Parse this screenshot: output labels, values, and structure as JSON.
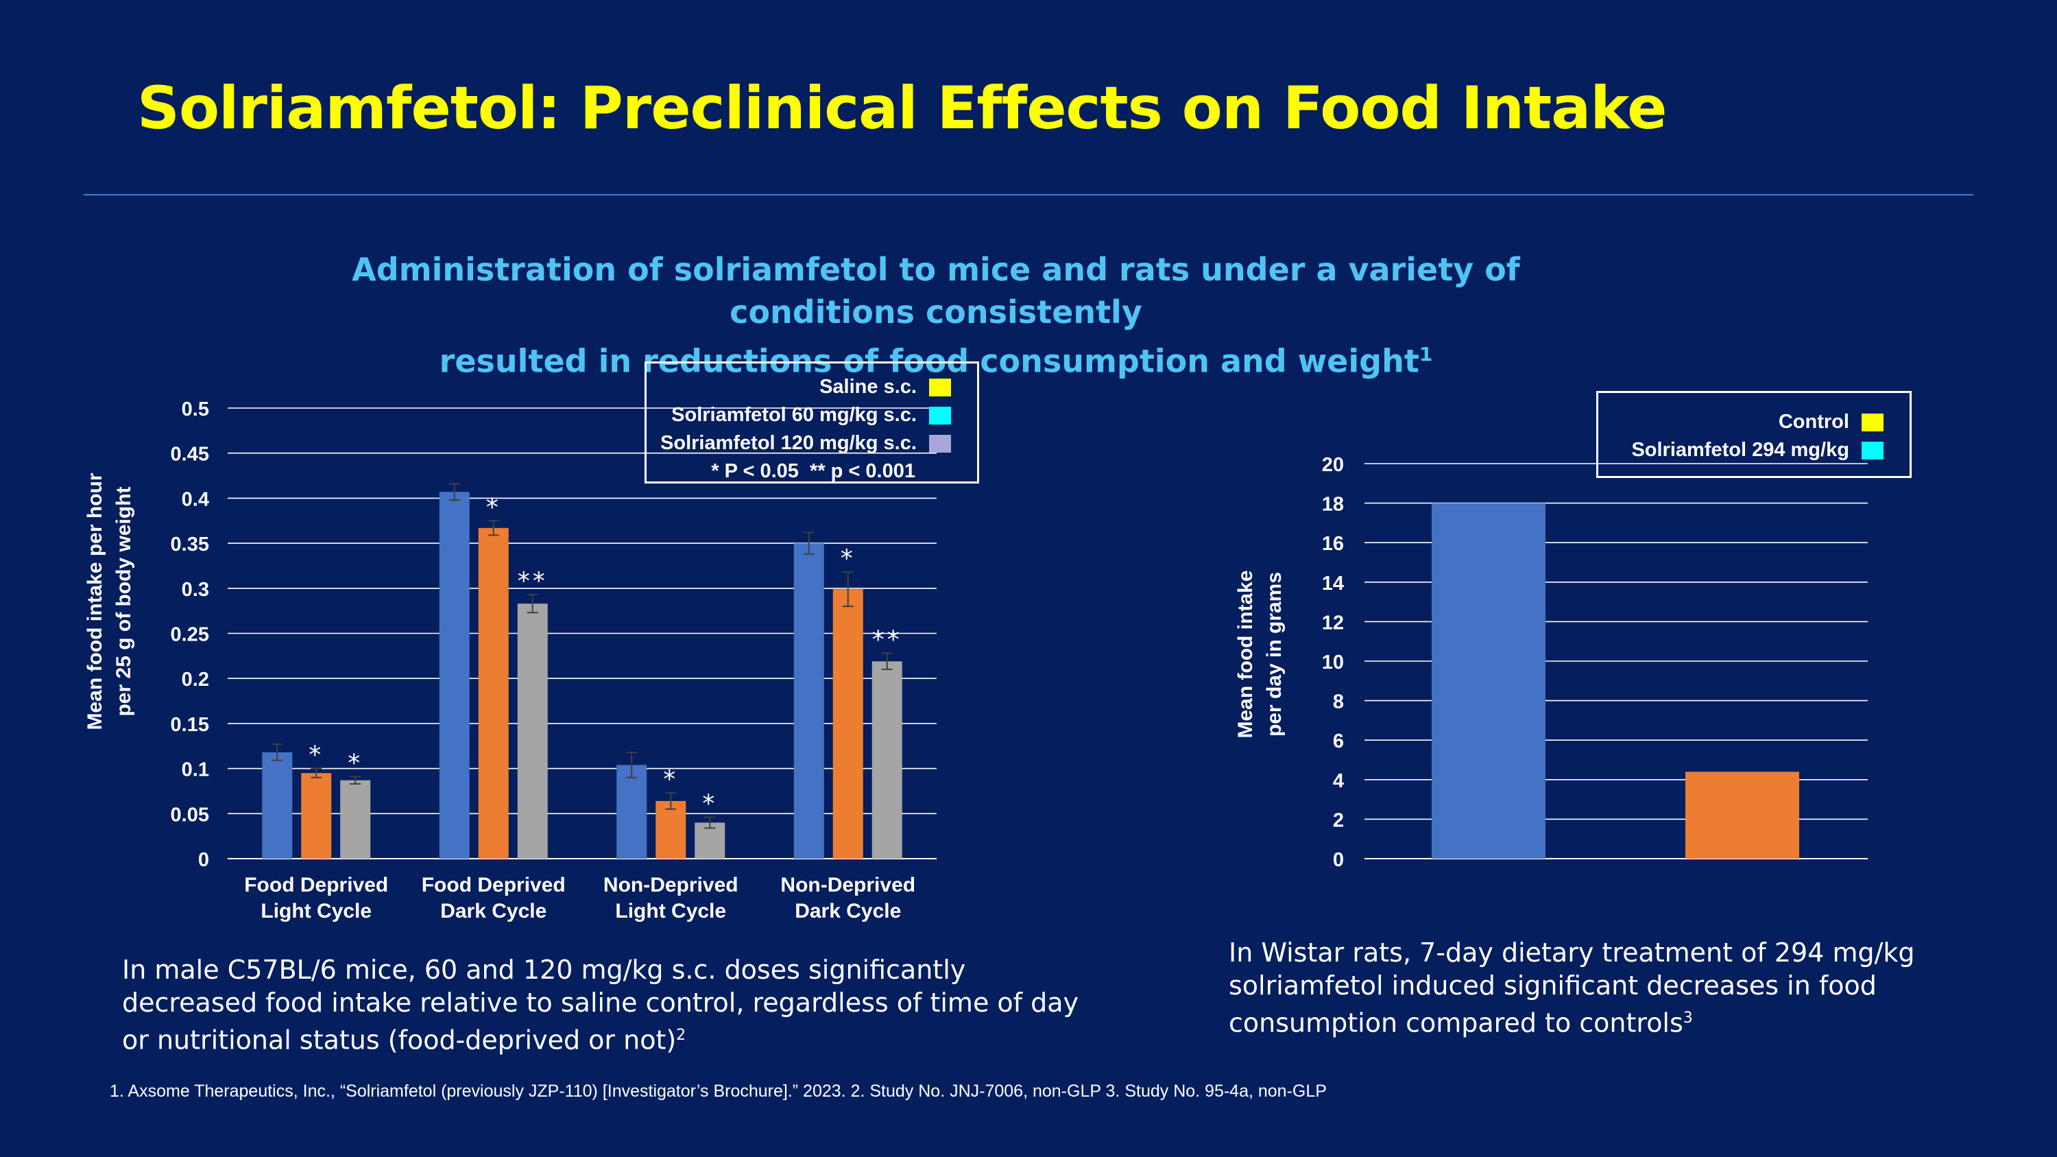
{
  "title": "Solriamfetol: Preclinical Effects on Food Intake",
  "subtitle_line1": "Administration of solriamfetol to mice and rats under a variety of conditions consistently",
  "subtitle_line2": "resulted in reductions of food consumption and weight",
  "subtitle_sup": "1",
  "caption_left": "In male C57BL/6 mice, 60 and 120 mg/kg s.c. doses significantly decreased food intake relative to saline control, regardless of time of day or nutritional status (food-deprived or not)",
  "caption_left_sup": "2",
  "caption_right": "In Wistar rats, 7-day dietary treatment of 294 mg/kg solriamfetol induced significant decreases in food consumption compared to controls",
  "caption_right_sup": "3",
  "footnote": "1. Axsome Therapeutics, Inc., “Solriamfetol (previously JZP-110) [Investigator’s Brochure].” 2023. 2. Study No. JNJ-7006, non-GLP 3. Study No. 95-4a, non-GLP",
  "chart_data": [
    {
      "type": "bar",
      "ylabel_line1": "Mean food intake per hour",
      "ylabel_line2": "per 25 g of body weight",
      "ylim": [
        0,
        0.5
      ],
      "yticks": [
        "0",
        "0.05",
        "0.1",
        "0.15",
        "0.2",
        "0.25",
        "0.3",
        "0.35",
        "0.4",
        "0.45",
        "0.5"
      ],
      "categories": [
        [
          "Food Deprived",
          "Light Cycle"
        ],
        [
          "Food Deprived",
          "Dark Cycle"
        ],
        [
          "Non-Deprived",
          "Light Cycle"
        ],
        [
          "Non-Deprived",
          "Dark Cycle"
        ]
      ],
      "series": [
        {
          "name": "Saline s.c.",
          "legend_color": "#FFFF00",
          "bar_color": "#4472C4",
          "values": [
            0.118,
            0.407,
            0.104,
            0.35
          ],
          "errors": [
            0.009,
            0.009,
            0.014,
            0.012
          ],
          "sig": [
            "",
            "",
            "",
            ""
          ]
        },
        {
          "name": "Solriamfetol 60 mg/kg s.c.",
          "legend_color": "#00FFFF",
          "bar_color": "#ED7D31",
          "values": [
            0.095,
            0.367,
            0.064,
            0.299
          ],
          "errors": [
            0.005,
            0.008,
            0.009,
            0.019
          ],
          "sig": [
            "*",
            "*",
            "*",
            "*"
          ]
        },
        {
          "name": "Solriamfetol 120 mg/kg s.c.",
          "legend_color": "#A6A6D8",
          "bar_color": "#A5A5A5",
          "values": [
            0.087,
            0.283,
            0.04,
            0.219
          ],
          "errors": [
            0.004,
            0.01,
            0.006,
            0.009
          ],
          "sig": [
            "*",
            "**",
            "*",
            "**"
          ]
        }
      ],
      "legend_note": "* P < 0.05  ** p < 0.001"
    },
    {
      "type": "bar",
      "ylabel_line1": "Mean food intake",
      "ylabel_line2": "per day in grams",
      "ylim": [
        0,
        20
      ],
      "yticks": [
        "0",
        "2",
        "4",
        "6",
        "8",
        "10",
        "12",
        "14",
        "16",
        "18",
        "20"
      ],
      "series": [
        {
          "name": "Control",
          "legend_color": "#FFFF00",
          "bar_color": "#4472C4",
          "value": 18
        },
        {
          "name": "Solriamfetol 294 mg/kg",
          "legend_color": "#00FFFF",
          "bar_color": "#ED7D31",
          "value": 4.4
        }
      ]
    }
  ]
}
